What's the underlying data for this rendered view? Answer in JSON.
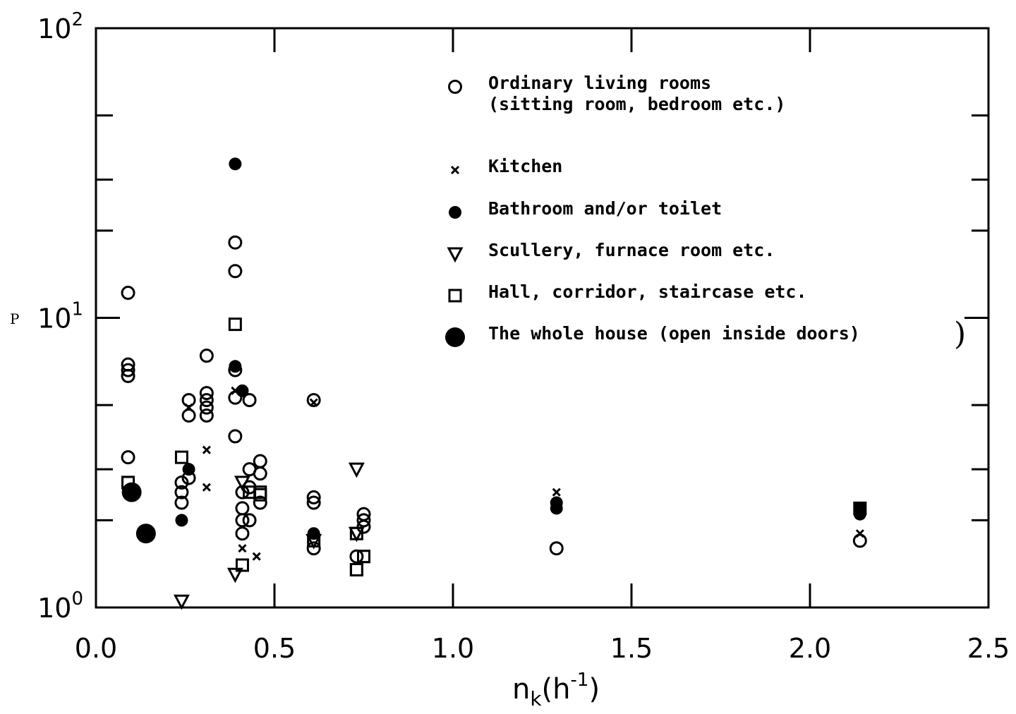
{
  "chart_data": {
    "type": "scatter",
    "x_scale": "linear",
    "y_scale": "log",
    "xlim": [
      0.0,
      2.5
    ],
    "ylim": [
      1,
      100
    ],
    "x_ticks": [
      "0.0",
      "0.5",
      "1.0",
      "1.5",
      "2.0",
      "2.5"
    ],
    "y_ticks": [
      {
        "base": "10",
        "exp": "0"
      },
      {
        "base": "10",
        "exp": "1"
      },
      {
        "base": "10",
        "exp": "2"
      }
    ],
    "xlabel": {
      "main": "n",
      "sub": "k",
      "open": "(h",
      "exp": "-1",
      "close": ")"
    },
    "ylabel": "P",
    "legend_position": "top-right",
    "series": [
      {
        "name_lines": [
          "Ordinary living rooms",
          "(sitting room, bedroom etc.)"
        ],
        "marker": "open-circle",
        "points": [
          [
            0.09,
            12.2
          ],
          [
            0.09,
            6.9
          ],
          [
            0.09,
            6.6
          ],
          [
            0.09,
            6.3
          ],
          [
            0.09,
            3.3
          ],
          [
            0.24,
            2.7
          ],
          [
            0.24,
            2.5
          ],
          [
            0.24,
            2.3
          ],
          [
            0.26,
            5.2
          ],
          [
            0.26,
            4.6
          ],
          [
            0.26,
            2.8
          ],
          [
            0.31,
            7.4
          ],
          [
            0.31,
            5.5
          ],
          [
            0.31,
            5.2
          ],
          [
            0.31,
            4.9
          ],
          [
            0.31,
            4.6
          ],
          [
            0.39,
            18.2
          ],
          [
            0.39,
            14.5
          ],
          [
            0.39,
            6.6
          ],
          [
            0.39,
            5.3
          ],
          [
            0.39,
            3.9
          ],
          [
            0.41,
            2.5
          ],
          [
            0.41,
            2.2
          ],
          [
            0.41,
            2.0
          ],
          [
            0.41,
            1.8
          ],
          [
            0.43,
            5.2
          ],
          [
            0.43,
            3.0
          ],
          [
            0.43,
            2.6
          ],
          [
            0.43,
            2.0
          ],
          [
            0.46,
            3.2
          ],
          [
            0.46,
            2.9
          ],
          [
            0.46,
            2.3
          ],
          [
            0.61,
            5.2
          ],
          [
            0.61,
            2.4
          ],
          [
            0.61,
            2.3
          ],
          [
            0.61,
            1.6
          ],
          [
            0.73,
            1.5
          ],
          [
            0.75,
            2.1
          ],
          [
            0.75,
            2.0
          ],
          [
            0.75,
            1.9
          ],
          [
            1.29,
            1.6
          ],
          [
            2.14,
            1.7
          ]
        ]
      },
      {
        "name_lines": [
          "Kitchen"
        ],
        "marker": "x",
        "points": [
          [
            0.26,
            4.9
          ],
          [
            0.31,
            3.5
          ],
          [
            0.31,
            2.6
          ],
          [
            0.39,
            5.6
          ],
          [
            0.41,
            1.6
          ],
          [
            0.45,
            1.5
          ],
          [
            0.61,
            5.1
          ],
          [
            1.29,
            2.5
          ],
          [
            2.14,
            1.8
          ]
        ]
      },
      {
        "name_lines": [
          "Bathroom and/or toilet"
        ],
        "marker": "filled-circle",
        "points": [
          [
            0.39,
            34.0
          ],
          [
            0.39,
            6.8
          ],
          [
            0.41,
            5.6
          ],
          [
            0.24,
            2.0
          ],
          [
            0.26,
            3.0
          ],
          [
            0.61,
            1.8
          ],
          [
            1.29,
            2.3
          ],
          [
            1.29,
            2.2
          ],
          [
            2.14,
            2.2
          ],
          [
            2.14,
            2.1
          ]
        ]
      },
      {
        "name_lines": [
          "Scullery, furnace room etc."
        ],
        "marker": "open-triangle-down",
        "points": [
          [
            0.24,
            1.05
          ],
          [
            0.39,
            1.3
          ],
          [
            0.41,
            2.7
          ],
          [
            0.61,
            1.7
          ],
          [
            0.73,
            3.0
          ],
          [
            0.73,
            1.8
          ]
        ]
      },
      {
        "name_lines": [
          "Hall, corridor, staircase etc."
        ],
        "marker": "open-square",
        "points": [
          [
            0.09,
            2.7
          ],
          [
            0.24,
            3.3
          ],
          [
            0.39,
            9.5
          ],
          [
            0.41,
            1.4
          ],
          [
            0.43,
            2.5
          ],
          [
            0.46,
            2.5
          ],
          [
            0.61,
            1.7
          ],
          [
            0.73,
            1.8
          ],
          [
            0.73,
            1.35
          ],
          [
            0.75,
            1.5
          ],
          [
            2.14,
            2.2
          ],
          [
            0.09,
            2.7
          ],
          [
            0.73,
            1.35
          ],
          [
            0.75,
            1.5
          ],
          [
            0.46,
            2.45
          ]
        ]
      },
      {
        "name_lines": [
          "The whole house (open inside doors)"
        ],
        "marker": "large-filled-circle",
        "points": [
          [
            0.1,
            2.5
          ],
          [
            0.14,
            1.8
          ]
        ]
      }
    ]
  },
  "decorations": {
    "legend_bracket": ")"
  }
}
